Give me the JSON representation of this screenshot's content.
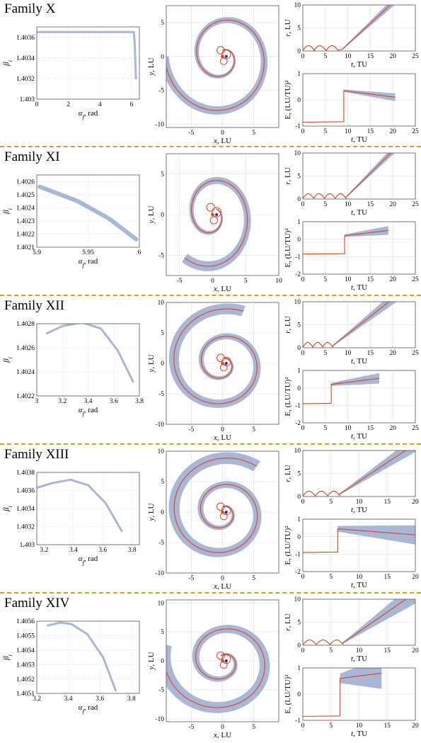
{
  "colors": {
    "band": "#a9b6d6",
    "nominal": "#d9441e",
    "grid": "#dedede",
    "axis": "#555555",
    "start": "#1a2ed6",
    "sep": "#c9a227"
  },
  "families": [
    {
      "title": "Family X",
      "chart_data": [
        {
          "type": "scatter",
          "xlabel": "α_f, rad",
          "ylabel": "β_i",
          "xlim": [
            0,
            6.5
          ],
          "ylim": [
            1.403,
            1.4037
          ],
          "xticks": [
            "0",
            "2",
            "4",
            "6"
          ],
          "yticks": [
            "1.403",
            "1.4032",
            "1.4034",
            "1.4036"
          ],
          "series": [
            {
              "values": [
                [
                  0.02,
                  1.40365
                ],
                [
                  6.15,
                  1.40365
                ],
                [
                  6.2,
                  1.40355
                ],
                [
                  6.28,
                  1.4032
                ]
              ]
            }
          ]
        },
        {
          "type": "line",
          "xlabel": "x, LU",
          "ylabel": "y, LU",
          "xlim": [
            -9,
            9
          ],
          "ylim": [
            -10.5,
            7.5
          ],
          "xticks": [
            "-5",
            "0",
            "5"
          ],
          "yticks": [
            "-10",
            "-5",
            "0",
            "5"
          ],
          "spiral": {
            "turns": 1.75,
            "rmax": 9.3,
            "rmin": 0.9,
            "phase": 1.57,
            "band": 1.4
          }
        },
        {
          "type": "line",
          "xlabel": "t, TU",
          "ylabel": "r, LU",
          "xlim": [
            0,
            25
          ],
          "ylim": [
            0,
            10
          ],
          "xticks": [
            "0",
            "5",
            "10",
            "15",
            "20",
            "25"
          ],
          "yticks": [
            "0",
            "5",
            "10"
          ],
          "loops": {
            "starts": [
              0,
              2.5,
              5.2
            ],
            "width": 2.6,
            "escape_t": 8.8,
            "end_t": 21,
            "spread": 0.8
          }
        },
        {
          "type": "line",
          "xlabel": "t, TU",
          "ylabel": "E, (LU/TU)²",
          "xlim": [
            0,
            25
          ],
          "ylim": [
            -1,
            1
          ],
          "xticks": [
            "0",
            "5",
            "10",
            "15",
            "20",
            "25"
          ],
          "yticks": [
            "-1",
            "0",
            "1"
          ],
          "energy": {
            "jump_t": 9.1,
            "before": -0.85,
            "after": 0.35,
            "end": 0.1,
            "end_t": 20.5,
            "spread": 0.15
          }
        }
      ]
    },
    {
      "title": "Family XI",
      "chart_data": [
        {
          "type": "scatter",
          "xlabel": "α_f, rad",
          "ylabel": "β_i",
          "xlim": [
            5.9,
            6
          ],
          "ylim": [
            1.4021,
            1.40265
          ],
          "xticks": [
            "5.9",
            "5.95",
            "6"
          ],
          "yticks": [
            "1.4021",
            "1.4022",
            "1.4023",
            "1.4024",
            "1.4025",
            "1.4026"
          ],
          "series": [
            {
              "values": [
                [
                  5.903,
                  1.40256
                ],
                [
                  5.94,
                  1.40245
                ],
                [
                  5.97,
                  1.40232
                ],
                [
                  5.997,
                  1.40216
                ]
              ]
            }
          ]
        },
        {
          "type": "line",
          "xlabel": "x, LU",
          "ylabel": "y, LU",
          "xlim": [
            -7,
            10
          ],
          "ylim": [
            -7.5,
            7.5
          ],
          "xticks": [
            "-5",
            "0",
            "5",
            "10"
          ],
          "yticks": [
            "-5",
            "0",
            "5"
          ],
          "spiral": {
            "turns": 1.5,
            "rmax": 6.8,
            "rmin": 0.9,
            "phase": 0.9,
            "band": 1.3
          }
        },
        {
          "type": "line",
          "xlabel": "t, TU",
          "ylabel": "r, LU",
          "xlim": [
            0,
            25
          ],
          "ylim": [
            0,
            10
          ],
          "xticks": [
            "0",
            "5",
            "10",
            "15",
            "20",
            "25"
          ],
          "yticks": [
            "0",
            "5",
            "10"
          ],
          "loops": {
            "starts": [
              0,
              2.4,
              4.8,
              7.2
            ],
            "width": 2.4,
            "escape_t": 9.6,
            "end_t": 21,
            "spread": 0.8
          }
        },
        {
          "type": "line",
          "xlabel": "t, TU",
          "ylabel": "E, (LU/TU)²",
          "xlim": [
            0,
            25
          ],
          "ylim": [
            -2,
            1
          ],
          "xticks": [
            "0",
            "5",
            "10",
            "15",
            "20",
            "25"
          ],
          "yticks": [
            "-2",
            "-1",
            "0",
            "1"
          ],
          "energy": {
            "jump_t": 9.3,
            "before": -0.85,
            "after": 0.2,
            "end": 0.5,
            "end_t": 19,
            "spread": 0.25
          }
        }
      ]
    },
    {
      "title": "Family XII",
      "chart_data": [
        {
          "type": "scatter",
          "xlabel": "α_f, rad",
          "ylabel": "β_i",
          "xlim": [
            3,
            3.8
          ],
          "ylim": [
            1.4022,
            1.4028
          ],
          "xticks": [
            "3",
            "3.2",
            "3.4",
            "3.6",
            "3.8"
          ],
          "yticks": [
            "1.4022",
            "1.4024",
            "1.4026",
            "1.4028"
          ],
          "series": [
            {
              "values": [
                [
                  3.08,
                  1.40272
                ],
                [
                  3.2,
                  1.40278
                ],
                [
                  3.35,
                  1.40281
                ],
                [
                  3.5,
                  1.40276
                ],
                [
                  3.63,
                  1.40258
                ],
                [
                  3.75,
                  1.40232
                ]
              ]
            }
          ]
        },
        {
          "type": "line",
          "xlabel": "x, LU",
          "ylabel": "y, LU",
          "xlim": [
            -9,
            9
          ],
          "ylim": [
            -10,
            10
          ],
          "xticks": [
            "-5",
            "0",
            "5"
          ],
          "yticks": [
            "-10",
            "-5",
            "0",
            "5",
            "10"
          ],
          "spiral": {
            "turns": 2,
            "rmax": 9.2,
            "rmin": 0.9,
            "phase": 1.2,
            "band": 1.8
          }
        },
        {
          "type": "line",
          "xlabel": "t, TU",
          "ylabel": "r, LU",
          "xlim": [
            0,
            25
          ],
          "ylim": [
            0,
            10
          ],
          "xticks": [
            "0",
            "5",
            "10",
            "15",
            "20",
            "25"
          ],
          "yticks": [
            "0",
            "5",
            "10"
          ],
          "loops": {
            "starts": [
              0,
              2.2,
              4.4
            ],
            "width": 2.2,
            "escape_t": 6.6,
            "end_t": 21,
            "spread": 1.2
          }
        },
        {
          "type": "line",
          "xlabel": "t, TU",
          "ylabel": "E, (LU/TU)²",
          "xlim": [
            0,
            25
          ],
          "ylim": [
            -2,
            1
          ],
          "xticks": [
            "0",
            "5",
            "10",
            "15",
            "20",
            "25"
          ],
          "yticks": [
            "-2",
            "-1",
            "0",
            "1"
          ],
          "energy": {
            "jump_t": 6.3,
            "before": -0.9,
            "after": 0.2,
            "end": 0.55,
            "end_t": 17,
            "spread": 0.3
          }
        }
      ]
    },
    {
      "title": "Family XIII",
      "chart_data": [
        {
          "type": "scatter",
          "xlabel": "α_f, rad",
          "ylabel": "β_i",
          "xlim": [
            3.15,
            3.85
          ],
          "ylim": [
            1.403,
            1.4038
          ],
          "xticks": [
            "3.2",
            "3.4",
            "3.6",
            "3.8"
          ],
          "yticks": [
            "1.403",
            "1.4032",
            "1.4034",
            "1.4036",
            "1.4038"
          ],
          "series": [
            {
              "values": [
                [
                  3.15,
                  1.40363
                ],
                [
                  3.25,
                  1.40368
                ],
                [
                  3.38,
                  1.40372
                ],
                [
                  3.5,
                  1.40366
                ],
                [
                  3.62,
                  1.40346
                ],
                [
                  3.73,
                  1.40315
                ]
              ]
            }
          ]
        },
        {
          "type": "line",
          "xlabel": "x, LU",
          "ylabel": "y, LU",
          "xlim": [
            -9,
            9
          ],
          "ylim": [
            -10,
            10
          ],
          "xticks": [
            "-5",
            "0",
            "5"
          ],
          "yticks": [
            "-10",
            "-5",
            "0",
            "5",
            "10"
          ],
          "spiral": {
            "turns": 2.1,
            "rmax": 9.3,
            "rmin": 0.9,
            "phase": 1.57,
            "band": 2.0
          }
        },
        {
          "type": "line",
          "xlabel": "t, TU",
          "ylabel": "r, LU",
          "xlim": [
            0,
            20
          ],
          "ylim": [
            0,
            10
          ],
          "xticks": [
            "0",
            "5",
            "10",
            "15",
            "20"
          ],
          "yticks": [
            "0",
            "5",
            "10"
          ],
          "loops": {
            "starts": [
              0,
              2.2,
              4.4
            ],
            "width": 2.2,
            "escape_t": 6.4,
            "end_t": 20,
            "spread": 1.6
          }
        },
        {
          "type": "line",
          "xlabel": "t, TU",
          "ylabel": "E, (LU/TU)²",
          "xlim": [
            0,
            20
          ],
          "ylim": [
            -2,
            1
          ],
          "xticks": [
            "0",
            "5",
            "10",
            "15",
            "20"
          ],
          "yticks": [
            "-2",
            "-1",
            "0",
            "1"
          ],
          "energy": {
            "jump_t": 6.2,
            "before": -0.9,
            "after": 0.45,
            "end": 0.1,
            "end_t": 20,
            "spread": 0.55
          }
        }
      ]
    },
    {
      "title": "Family XIV",
      "chart_data": [
        {
          "type": "scatter",
          "xlabel": "α_f, rad",
          "ylabel": "β_i",
          "xlim": [
            3.2,
            3.85
          ],
          "ylim": [
            1.4051,
            1.4056
          ],
          "xticks": [
            "3.2",
            "3.4",
            "3.6",
            "3.8"
          ],
          "yticks": [
            "1.4051",
            "1.4052",
            "1.4053",
            "1.4054",
            "1.4055",
            "1.4056"
          ],
          "series": [
            {
              "values": [
                [
                  3.27,
                  1.40557
                ],
                [
                  3.35,
                  1.40559
                ],
                [
                  3.42,
                  1.40558
                ],
                [
                  3.52,
                  1.40551
                ],
                [
                  3.62,
                  1.40535
                ],
                [
                  3.7,
                  1.40512
                ]
              ]
            }
          ]
        },
        {
          "type": "line",
          "xlabel": "x, LU",
          "ylabel": "y, LU",
          "xlim": [
            -9,
            9
          ],
          "ylim": [
            -10.5,
            10.5
          ],
          "xticks": [
            "-5",
            "0",
            "5"
          ],
          "yticks": [
            "-10",
            "-5",
            "0",
            "5",
            "10"
          ],
          "spiral": {
            "turns": 1.85,
            "rmax": 9.6,
            "rmin": 0.9,
            "phase": 1.9,
            "band": 2.2
          }
        },
        {
          "type": "line",
          "xlabel": "t, TU",
          "ylabel": "r, LU",
          "xlim": [
            0,
            20
          ],
          "ylim": [
            0,
            10
          ],
          "xticks": [
            "0",
            "5",
            "10",
            "15",
            "20"
          ],
          "yticks": [
            "0",
            "5",
            "10"
          ],
          "loops": {
            "starts": [
              0,
              2.4,
              4.8
            ],
            "width": 2.4,
            "escape_t": 7,
            "end_t": 20,
            "spread": 2.2
          }
        },
        {
          "type": "line",
          "xlabel": "t, TU",
          "ylabel": "E, (LU/TU)²",
          "xlim": [
            0,
            20
          ],
          "ylim": [
            -1,
            1
          ],
          "xticks": [
            "0",
            "5",
            "10",
            "15",
            "20"
          ],
          "yticks": [
            "-1",
            "0",
            "1"
          ],
          "energy": {
            "jump_t": 6.6,
            "before": -0.85,
            "after": 0.6,
            "end": 0.8,
            "end_t": 14,
            "spread": 0.6
          }
        }
      ]
    }
  ]
}
